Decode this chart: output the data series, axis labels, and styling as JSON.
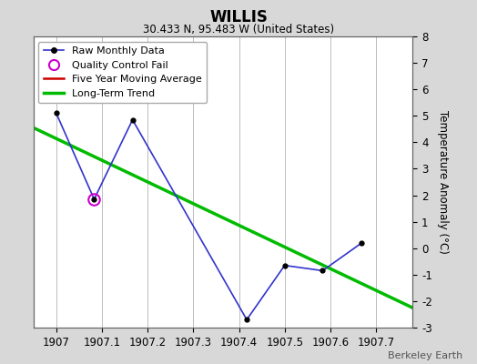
{
  "title": "WILLIS",
  "subtitle": "30.433 N, 95.483 W (United States)",
  "attribution": "Berkeley Earth",
  "ylabel": "Temperature Anomaly (°C)",
  "xlim": [
    1906.95,
    1907.78
  ],
  "ylim": [
    -3,
    8
  ],
  "yticks": [
    -3,
    -2,
    -1,
    0,
    1,
    2,
    3,
    4,
    5,
    6,
    7,
    8
  ],
  "xticks": [
    1907,
    1907.1,
    1907.2,
    1907.3,
    1907.4,
    1907.5,
    1907.6,
    1907.7
  ],
  "xticklabels": [
    "1907",
    "1907.1",
    "1907.2",
    "1907.3",
    "1907.4",
    "1907.5",
    "1907.6",
    "1907.7"
  ],
  "raw_x": [
    1907.0,
    1907.083,
    1907.167,
    1907.417,
    1907.5,
    1907.583,
    1907.667
  ],
  "raw_y": [
    5.1,
    1.85,
    4.85,
    -2.7,
    -0.65,
    -0.85,
    0.18
  ],
  "qc_fail_x": [
    1907.083
  ],
  "qc_fail_y": [
    1.85
  ],
  "trend_x": [
    1906.95,
    1907.78
  ],
  "trend_y": [
    4.55,
    -2.25
  ],
  "bg_color": "#d8d8d8",
  "plot_bg_color": "#ffffff",
  "raw_line_color": "#3333cc",
  "raw_dot_color": "#000000",
  "qc_color": "#cc00cc",
  "trend_color": "#00bb00",
  "five_year_color": "#cc0000",
  "grid_color": "#bbbbbb"
}
